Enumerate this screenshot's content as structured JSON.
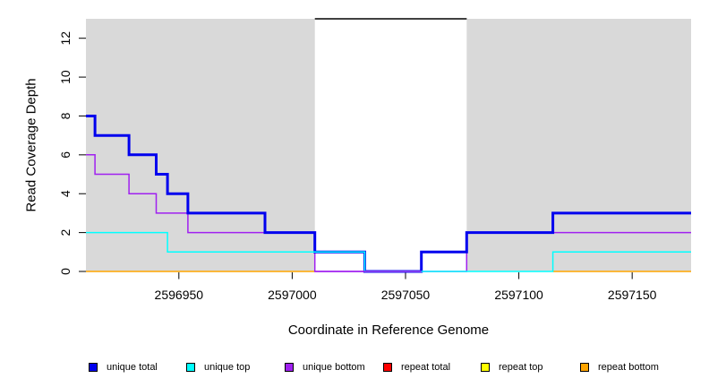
{
  "chart_data": {
    "type": "line",
    "subtype": "step-after",
    "title": "",
    "xlabel": "Coordinate in Reference Genome",
    "ylabel": "Read Coverage Depth",
    "xlim": [
      2596909,
      2597176
    ],
    "ylim": [
      0,
      13
    ],
    "x_ticks": [
      2596950,
      2597000,
      2597050,
      2597100,
      2597150
    ],
    "y_ticks": [
      0,
      2,
      4,
      6,
      8,
      10,
      12
    ],
    "grid": "off",
    "background_color": "#ffffff",
    "shaded_region_color": "#D9D9D9",
    "shaded_regions": [
      {
        "from": 2596909,
        "to": 2597010
      },
      {
        "from": 2597077,
        "to": 2597176
      }
    ],
    "series": [
      {
        "name": "repeat bottom",
        "color": "#FFA500",
        "width": 1.5,
        "points": [
          [
            2596909,
            0
          ],
          [
            2597010,
            null
          ],
          [
            2597115,
            0
          ]
        ],
        "end": 2597176
      },
      {
        "name": "repeat top",
        "color": "#FFFF00",
        "width": 1.5,
        "points": [],
        "end": 2597176
      },
      {
        "name": "repeat total",
        "color": "#FF0000",
        "width": 1.5,
        "points": [],
        "end": 2597176
      },
      {
        "name": "unique bottom",
        "color": "#A020F0",
        "width": 1.5,
        "points": [
          [
            2596909,
            6
          ],
          [
            2596913,
            5
          ],
          [
            2596928,
            4
          ],
          [
            2596940,
            3
          ],
          [
            2596954,
            2
          ],
          [
            2597010,
            0
          ],
          [
            2597077,
            2
          ]
        ],
        "end": 2597176
      },
      {
        "name": "unique total",
        "color": "#0000EE",
        "width": 3,
        "points": [
          [
            2596909,
            8
          ],
          [
            2596913,
            7
          ],
          [
            2596928,
            6
          ],
          [
            2596940,
            5
          ],
          [
            2596945,
            4
          ],
          [
            2596954,
            3
          ],
          [
            2596988,
            2
          ],
          [
            2597010,
            1
          ],
          [
            2597032,
            0
          ],
          [
            2597057,
            1
          ],
          [
            2597077,
            2
          ],
          [
            2597115,
            3
          ]
        ],
        "end": 2597176
      },
      {
        "name": "unique top",
        "color": "#00FFFF",
        "width": 1.5,
        "points": [
          [
            2596909,
            2
          ],
          [
            2596945,
            1
          ],
          [
            2597032,
            0
          ],
          [
            2597115,
            1
          ]
        ],
        "end": 2597176
      }
    ],
    "overlay_segments": [
      {
        "series": "unique bottom",
        "color": "#A020F0",
        "width": 1.5,
        "from": 2597010,
        "to": 2597057,
        "value": 0
      }
    ],
    "annotations": [
      {
        "type": "hline",
        "color": "#000000",
        "width": 1.5,
        "value": 13,
        "from": 2597010,
        "to": 2597077
      }
    ],
    "legend": {
      "position": "bottom",
      "items": [
        {
          "label": "unique total",
          "color": "#0000EE"
        },
        {
          "label": "unique top",
          "color": "#00FFFF"
        },
        {
          "label": "unique bottom",
          "color": "#A020F0"
        },
        {
          "label": "repeat total",
          "color": "#FF0000"
        },
        {
          "label": "repeat top",
          "color": "#FFFF00"
        },
        {
          "label": "repeat bottom",
          "color": "#FFA500"
        }
      ]
    }
  }
}
